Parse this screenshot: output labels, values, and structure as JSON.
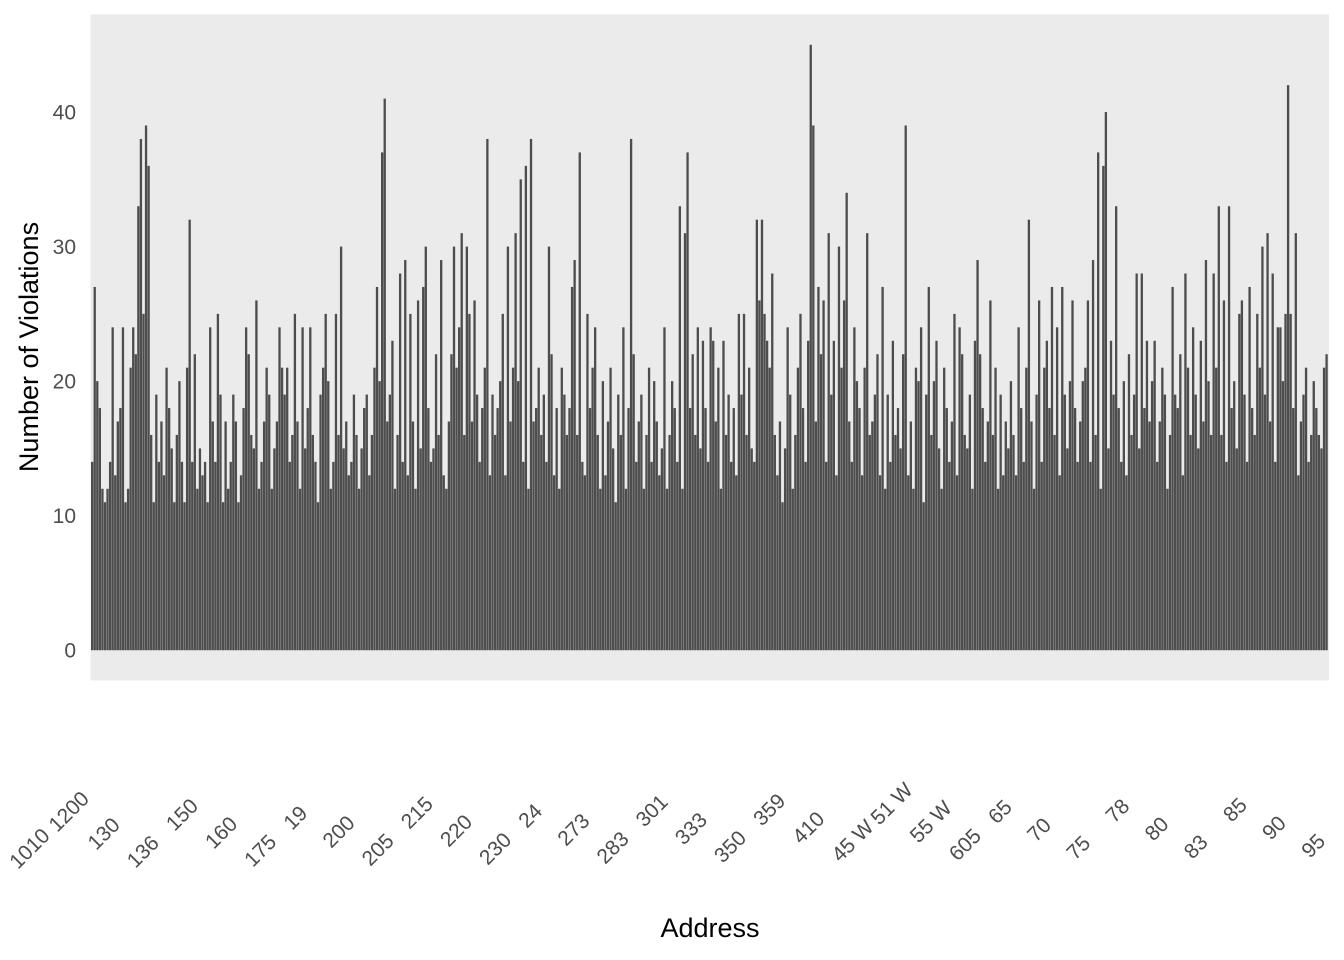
{
  "chart_data": {
    "type": "bar",
    "xlabel": "Address",
    "ylabel": "Number of Violations",
    "ylim": [
      -2.25,
      47.25
    ],
    "y_ticks": [
      0,
      10,
      20,
      30,
      40
    ],
    "grid": false,
    "legend": "none",
    "colors": {
      "panel": "#ebebeb",
      "bar": "#4d4d4d",
      "tick_text": "#4d4d4d",
      "title_text": "#000000"
    },
    "x_tick_labels_visible": [
      "1010",
      "1200",
      "130",
      "136",
      "150",
      "160",
      "175",
      "19",
      "200",
      "205",
      "215",
      "220",
      "230",
      "24",
      "273",
      "283",
      "301",
      "333",
      "350",
      "359",
      "410",
      "45 W",
      "51 W",
      "55 W",
      "605",
      "65",
      "70",
      "75",
      "78",
      "80",
      "83",
      "85",
      "90",
      "95"
    ],
    "categories_count": 820,
    "values": [
      14,
      27,
      20,
      18,
      12,
      11,
      12,
      14,
      24,
      13,
      17,
      18,
      24,
      11,
      12,
      21,
      24,
      22,
      33,
      38,
      25,
      39,
      36,
      16,
      11,
      19,
      14,
      17,
      13,
      21,
      18,
      15,
      11,
      16,
      20,
      14,
      11,
      21,
      32,
      14,
      22,
      12,
      15,
      13,
      14,
      11,
      24,
      17,
      14,
      25,
      19,
      11,
      17,
      12,
      14,
      19,
      17,
      11,
      13,
      18,
      24,
      22,
      16,
      15,
      26,
      12,
      14,
      17,
      21,
      19,
      12,
      15,
      17,
      24,
      21,
      19,
      21,
      14,
      16,
      25,
      17,
      12,
      24,
      15,
      18,
      24,
      16,
      14,
      11,
      19,
      21,
      25,
      20,
      12,
      14,
      25,
      16,
      30,
      15,
      17,
      13,
      14,
      19,
      16,
      12,
      15,
      18,
      19,
      13,
      16,
      21,
      27,
      20,
      37,
      41,
      17,
      19,
      23,
      12,
      16,
      28,
      14,
      29,
      13,
      25,
      17,
      12,
      26,
      15,
      27,
      30,
      18,
      14,
      15,
      22,
      16,
      29,
      13,
      12,
      17,
      22,
      30,
      21,
      24,
      31,
      16,
      30,
      25,
      17,
      26,
      19,
      14,
      18,
      21,
      38,
      13,
      19,
      16,
      18,
      20,
      25,
      13,
      30,
      17,
      21,
      31,
      20,
      35,
      14,
      36,
      12,
      38,
      17,
      18,
      21,
      16,
      19,
      14,
      30,
      22,
      13,
      18,
      12,
      21,
      19,
      16,
      18,
      27,
      29,
      16,
      37,
      14,
      13,
      25,
      18,
      21,
      24,
      16,
      12,
      20,
      13,
      17,
      21,
      15,
      11,
      19,
      16,
      24,
      12,
      18,
      38,
      22,
      14,
      17,
      19,
      12,
      16,
      21,
      14,
      20,
      17,
      13,
      15,
      24,
      12,
      16,
      20,
      18,
      14,
      33,
      12,
      31,
      37,
      18,
      22,
      16,
      24,
      15,
      23,
      18,
      14,
      24,
      23,
      17,
      21,
      12,
      23,
      16,
      19,
      14,
      18,
      13,
      25,
      19,
      25,
      16,
      21,
      15,
      14,
      32,
      26,
      32,
      25,
      23,
      21,
      28,
      16,
      13,
      17,
      11,
      15,
      24,
      19,
      12,
      16,
      21,
      25,
      18,
      14,
      23,
      45,
      39,
      17,
      27,
      22,
      26,
      14,
      31,
      19,
      23,
      13,
      30,
      21,
      26,
      34,
      17,
      14,
      24,
      20,
      18,
      13,
      21,
      31,
      16,
      17,
      19,
      22,
      13,
      27,
      12,
      19,
      14,
      23,
      16,
      18,
      15,
      22,
      39,
      13,
      17,
      12,
      21,
      20,
      24,
      11,
      19,
      27,
      16,
      20,
      23,
      15,
      12,
      21,
      18,
      14,
      17,
      25,
      13,
      24,
      22,
      16,
      15,
      19,
      12,
      23,
      29,
      22,
      18,
      14,
      17,
      26,
      16,
      21,
      12,
      19,
      13,
      17,
      15,
      20,
      16,
      13,
      24,
      18,
      14,
      21,
      32,
      17,
      12,
      19,
      26,
      14,
      21,
      23,
      18,
      27,
      16,
      24,
      13,
      27,
      19,
      15,
      20,
      26,
      18,
      14,
      17,
      20,
      21,
      26,
      14,
      29,
      16,
      37,
      12,
      36,
      40,
      15,
      23,
      19,
      33,
      18,
      14,
      20,
      13,
      22,
      16,
      19,
      28,
      15,
      28,
      18,
      23,
      17,
      20,
      23,
      14,
      17,
      21,
      19,
      12,
      16,
      27,
      19,
      18,
      22,
      13,
      28,
      21,
      16,
      24,
      19,
      15,
      23,
      17,
      29,
      20,
      16,
      28,
      21,
      33,
      16,
      26,
      14,
      33,
      18,
      20,
      15,
      25,
      26,
      19,
      14,
      27,
      18,
      16,
      25,
      21,
      30,
      19,
      31,
      17,
      28,
      14,
      24,
      24,
      20,
      25,
      42,
      25,
      18,
      31,
      13,
      17,
      19,
      21,
      14,
      16,
      20,
      18,
      16,
      15,
      21,
      22
    ],
    "bar_min_value": 10
  }
}
